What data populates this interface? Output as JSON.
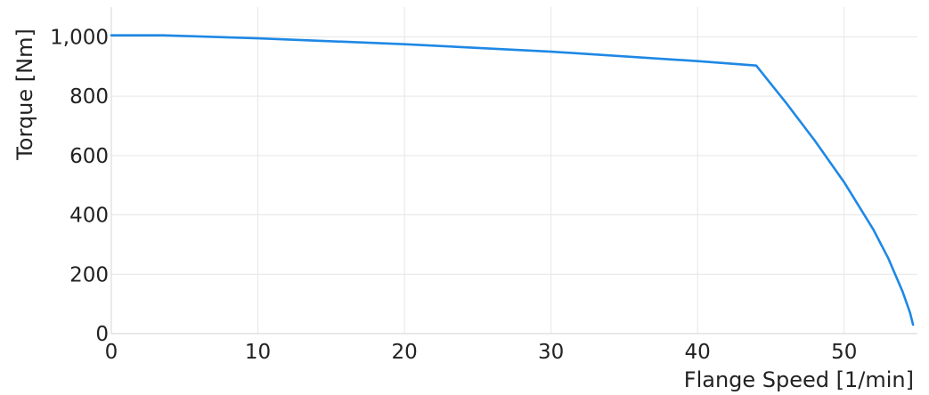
{
  "chart_data": {
    "type": "line",
    "title": "",
    "xlabel": "Flange Speed [1/min]",
    "ylabel": "Torque [Nm]",
    "xlim": [
      0,
      55
    ],
    "ylim": [
      0,
      1100
    ],
    "x_ticks": [
      {
        "value": 0,
        "label": "0"
      },
      {
        "value": 10,
        "label": "10"
      },
      {
        "value": 20,
        "label": "20"
      },
      {
        "value": 30,
        "label": "30"
      },
      {
        "value": 40,
        "label": "40"
      },
      {
        "value": 50,
        "label": "50"
      }
    ],
    "y_ticks": [
      {
        "value": 0,
        "label": "0"
      },
      {
        "value": 200,
        "label": "200"
      },
      {
        "value": 400,
        "label": "400"
      },
      {
        "value": 600,
        "label": "600"
      },
      {
        "value": 800,
        "label": "800"
      },
      {
        "value": 1000,
        "label": "1,000"
      }
    ],
    "grid": true,
    "legend": "none",
    "series": [
      {
        "color": "#1e88e5",
        "points": [
          [
            0,
            1005
          ],
          [
            3.5,
            1005
          ],
          [
            10,
            995
          ],
          [
            20,
            975
          ],
          [
            30,
            950
          ],
          [
            40,
            918
          ],
          [
            44,
            903
          ],
          [
            46,
            780
          ],
          [
            48,
            650
          ],
          [
            50,
            510
          ],
          [
            52,
            350
          ],
          [
            53,
            255
          ],
          [
            54,
            140
          ],
          [
            54.5,
            70
          ],
          [
            54.7,
            30
          ]
        ]
      }
    ]
  }
}
